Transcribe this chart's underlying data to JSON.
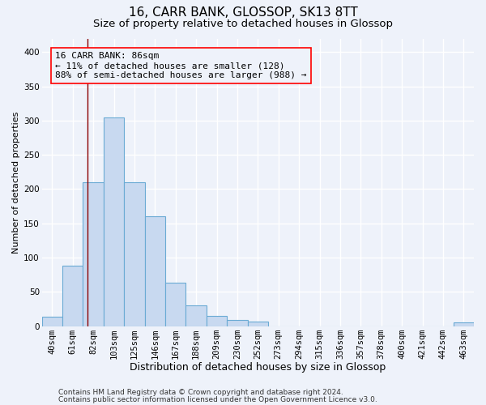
{
  "title1": "16, CARR BANK, GLOSSOP, SK13 8TT",
  "title2": "Size of property relative to detached houses in Glossop",
  "xlabel": "Distribution of detached houses by size in Glossop",
  "ylabel": "Number of detached properties",
  "bar_color": "#c8d9f0",
  "bar_edge_color": "#6aaad4",
  "categories": [
    "40sqm",
    "61sqm",
    "82sqm",
    "103sqm",
    "125sqm",
    "146sqm",
    "167sqm",
    "188sqm",
    "209sqm",
    "230sqm",
    "252sqm",
    "273sqm",
    "294sqm",
    "315sqm",
    "336sqm",
    "357sqm",
    "378sqm",
    "400sqm",
    "421sqm",
    "442sqm",
    "463sqm"
  ],
  "values": [
    14,
    88,
    210,
    305,
    210,
    160,
    63,
    30,
    15,
    9,
    6,
    0,
    0,
    0,
    0,
    0,
    0,
    0,
    0,
    0,
    5
  ],
  "ylim": [
    0,
    420
  ],
  "yticks": [
    0,
    50,
    100,
    150,
    200,
    250,
    300,
    350,
    400
  ],
  "annotation_line1": "16 CARR BANK: 86sqm",
  "annotation_line2": "← 11% of detached houses are smaller (128)",
  "annotation_line3": "88% of semi-detached houses are larger (988) →",
  "red_line_x": 1.73,
  "footer1": "Contains HM Land Registry data © Crown copyright and database right 2024.",
  "footer2": "Contains public sector information licensed under the Open Government Licence v3.0.",
  "background_color": "#eef2fa",
  "grid_color": "#ffffff",
  "title1_fontsize": 11,
  "title2_fontsize": 9.5,
  "xlabel_fontsize": 9,
  "ylabel_fontsize": 8,
  "tick_fontsize": 7.5,
  "footer_fontsize": 6.5,
  "annotation_fontsize": 8
}
